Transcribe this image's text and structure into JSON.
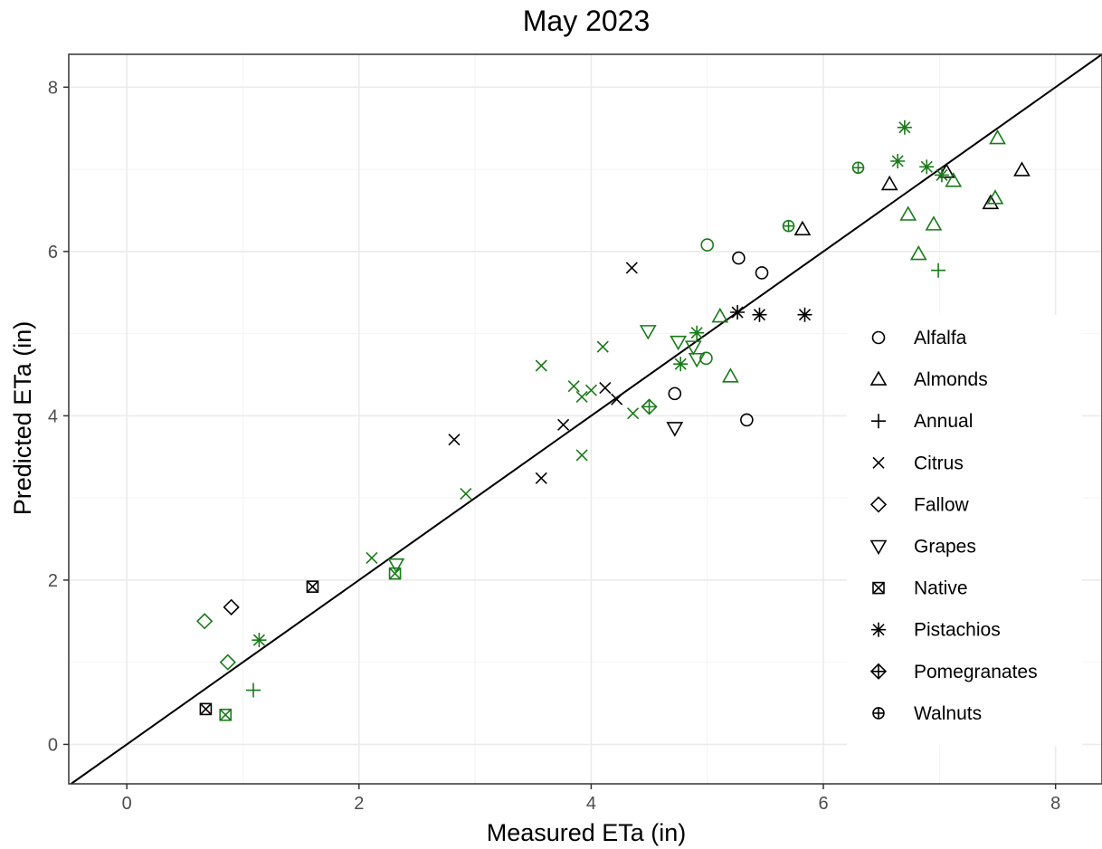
{
  "chart_data": {
    "type": "scatter",
    "title": "May 2023",
    "xlabel": "Measured ETa (in)",
    "ylabel": "Predicted ETa (in)",
    "xlim": [
      -0.5,
      8.4
    ],
    "ylim": [
      -0.48,
      8.4
    ],
    "x_ticks": [
      0,
      2,
      4,
      6,
      8
    ],
    "y_ticks": [
      0,
      2,
      4,
      6,
      8
    ],
    "grid": true,
    "reference_line": "1:1",
    "legend_position": "right",
    "colors": {
      "black": "#000000",
      "green": "#1a7a1a"
    },
    "legend": [
      {
        "label": "Alfalfa",
        "shape": "circle"
      },
      {
        "label": "Almonds",
        "shape": "triangle-up"
      },
      {
        "label": "Annual",
        "shape": "plus"
      },
      {
        "label": "Citrus",
        "shape": "cross"
      },
      {
        "label": "Fallow",
        "shape": "diamond"
      },
      {
        "label": "Grapes",
        "shape": "triangle-down"
      },
      {
        "label": "Native",
        "shape": "square-cross"
      },
      {
        "label": "Pistachios",
        "shape": "asterisk"
      },
      {
        "label": "Pomegranates",
        "shape": "diamond-plus"
      },
      {
        "label": "Walnuts",
        "shape": "circle-plus"
      }
    ],
    "series": [
      {
        "label": "Alfalfa",
        "color": "black",
        "points": [
          [
            5.27,
            5.92
          ],
          [
            5.47,
            5.74
          ],
          [
            4.72,
            4.27
          ],
          [
            5.34,
            3.95
          ]
        ]
      },
      {
        "label": "Alfalfa",
        "color": "green",
        "points": [
          [
            5.0,
            6.08
          ],
          [
            4.99,
            4.7
          ]
        ]
      },
      {
        "label": "Almonds",
        "color": "black",
        "points": [
          [
            5.82,
            6.27
          ],
          [
            6.57,
            6.82
          ],
          [
            7.06,
            6.97
          ],
          [
            7.71,
            6.99
          ],
          [
            7.44,
            6.59
          ]
        ]
      },
      {
        "label": "Almonds",
        "color": "green",
        "points": [
          [
            5.11,
            5.21
          ],
          [
            5.2,
            4.48
          ],
          [
            6.73,
            6.45
          ],
          [
            6.82,
            5.97
          ],
          [
            6.95,
            6.33
          ],
          [
            7.12,
            6.86
          ],
          [
            7.48,
            6.65
          ],
          [
            7.5,
            7.38
          ]
        ]
      },
      {
        "label": "Annual",
        "color": "green",
        "points": [
          [
            1.09,
            0.66
          ],
          [
            6.99,
            5.77
          ]
        ]
      },
      {
        "label": "Citrus",
        "color": "black",
        "points": [
          [
            4.35,
            5.8
          ],
          [
            2.82,
            3.71
          ],
          [
            3.57,
            3.24
          ],
          [
            3.76,
            3.89
          ],
          [
            4.12,
            4.34
          ],
          [
            4.22,
            4.2
          ]
        ]
      },
      {
        "label": "Citrus",
        "color": "green",
        "points": [
          [
            2.11,
            2.27
          ],
          [
            2.92,
            3.05
          ],
          [
            3.57,
            4.61
          ],
          [
            3.85,
            4.36
          ],
          [
            3.92,
            4.23
          ],
          [
            4.0,
            4.31
          ],
          [
            3.92,
            3.52
          ],
          [
            4.1,
            4.84
          ],
          [
            4.36,
            4.03
          ]
        ]
      },
      {
        "label": "Fallow",
        "color": "black",
        "points": [
          [
            0.9,
            1.67
          ]
        ]
      },
      {
        "label": "Fallow",
        "color": "green",
        "points": [
          [
            0.67,
            1.5
          ],
          [
            0.87,
            1.0
          ]
        ]
      },
      {
        "label": "Grapes",
        "color": "black",
        "points": [
          [
            4.72,
            3.85
          ]
        ]
      },
      {
        "label": "Grapes",
        "color": "green",
        "points": [
          [
            2.32,
            2.19
          ],
          [
            4.49,
            5.03
          ],
          [
            4.75,
            4.9
          ],
          [
            4.88,
            4.84
          ],
          [
            4.91,
            4.69
          ]
        ]
      },
      {
        "label": "Native",
        "color": "black",
        "points": [
          [
            1.6,
            1.92
          ],
          [
            0.68,
            0.43
          ]
        ]
      },
      {
        "label": "Native",
        "color": "green",
        "points": [
          [
            2.31,
            2.08
          ],
          [
            0.85,
            0.36
          ]
        ]
      },
      {
        "label": "Pistachios",
        "color": "black",
        "points": [
          [
            5.26,
            5.26
          ],
          [
            5.45,
            5.23
          ],
          [
            5.84,
            5.23
          ]
        ]
      },
      {
        "label": "Pistachios",
        "color": "green",
        "points": [
          [
            1.14,
            1.27
          ],
          [
            4.77,
            4.63
          ],
          [
            4.91,
            5.01
          ],
          [
            6.64,
            7.1
          ],
          [
            6.7,
            7.51
          ],
          [
            6.89,
            7.03
          ],
          [
            7.02,
            6.93
          ]
        ]
      },
      {
        "label": "Pomegranates",
        "color": "green",
        "points": [
          [
            4.5,
            4.11
          ]
        ]
      },
      {
        "label": "Walnuts",
        "color": "green",
        "points": [
          [
            5.7,
            6.31
          ],
          [
            6.3,
            7.02
          ]
        ]
      }
    ]
  }
}
